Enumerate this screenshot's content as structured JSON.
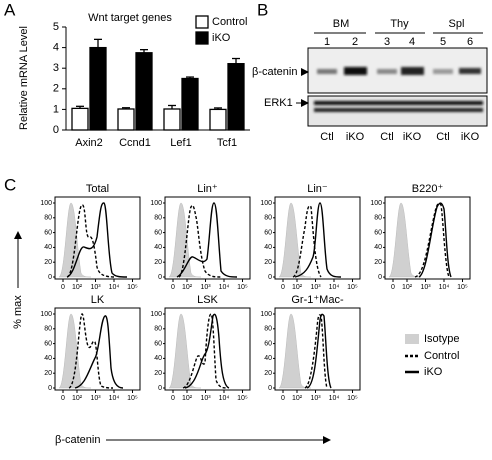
{
  "panel_labels": [
    "A",
    "B",
    "C"
  ],
  "chart_data": {
    "type": "bar",
    "title": "Wnt target genes",
    "ylabel": "Relative mRNA Level",
    "categories": [
      "Axin2",
      "Ccnd1",
      "Lef1",
      "Tcf1"
    ],
    "series": [
      {
        "name": "Control",
        "color": "#ffffff",
        "values": [
          1.05,
          1.02,
          1.02,
          1.0
        ],
        "errors": [
          0.1,
          0.06,
          0.17,
          0.07
        ]
      },
      {
        "name": "iKO",
        "color": "#000000",
        "values": [
          4.0,
          3.75,
          2.5,
          3.22
        ],
        "errors": [
          0.4,
          0.15,
          0.07,
          0.25
        ]
      }
    ],
    "ylim": [
      0,
      5
    ],
    "yticks": [
      0,
      1,
      2,
      3,
      4,
      5
    ]
  },
  "blot": {
    "groups": [
      "BM",
      "Thy",
      "Spl"
    ],
    "lanes": [
      "1",
      "2",
      "3",
      "4",
      "5",
      "6"
    ],
    "conditions": [
      "Ctl",
      "iKO"
    ],
    "bands": [
      "β-catenin",
      "ERK1"
    ]
  },
  "flow": {
    "panels": [
      "Total",
      "Lin⁺",
      "Lin⁻",
      "B220⁺",
      "LK",
      "LSK",
      "Gr-1⁺Mac-"
    ],
    "yticks": [
      0,
      20,
      40,
      60,
      80,
      100
    ],
    "xticks": [
      0,
      {
        "value": 100,
        "label": "10²"
      },
      {
        "value": 1000,
        "label": "10³"
      },
      {
        "value": 10000,
        "label": "10⁴"
      },
      {
        "value": 100000,
        "label": "10⁵"
      }
    ],
    "ylabel": "% max",
    "xlabel": "β-catenin",
    "legend": [
      "Isotype",
      "Control",
      "iKO"
    ]
  }
}
